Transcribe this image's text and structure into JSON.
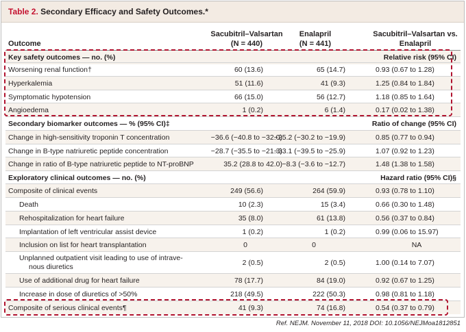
{
  "table": {
    "label": "Table 2.",
    "title": "Secondary Efficacy and Safety Outcomes.*",
    "headers": {
      "outcome": "Outcome",
      "sv_line1": "Sacubitril–Valsartan",
      "sv_line2": "(N = 440)",
      "en_line1": "Enalapril",
      "en_line2": "(N = 441)",
      "rr_line1": "Sacubitril–Valsartan vs.",
      "rr_line2": "Enalapril"
    },
    "sections": {
      "safety": {
        "label": "Key safety outcomes — no. (%)",
        "measure": "Relative risk (95% CI)"
      },
      "biomarker": {
        "label": "Secondary biomarker outcomes — % (95% CI)‡",
        "measure": "Ratio of change (95% CI)"
      },
      "clinical": {
        "label": "Exploratory clinical outcomes — no. (%)",
        "measure": "Hazard ratio (95% CI)§"
      }
    },
    "rows": [
      {
        "name": "Worsening renal function†",
        "sv": "60 (13.6)",
        "en": "65 (14.7)",
        "rr": "0.93 (0.67 to 1.28)"
      },
      {
        "name": "Hyperkalemia",
        "sv": "51 (11.6)",
        "en": "41 (9.3)",
        "rr": "1.25 (0.84 to 1.84)"
      },
      {
        "name": "Symptomatic hypotension",
        "sv": "66 (15.0)",
        "en": "56 (12.7)",
        "rr": "1.18 (0.85 to 1.64)"
      },
      {
        "name": "Angioedema",
        "sv": "1 (0.2)",
        "en": "6 (1.4)",
        "rr": "0.17 (0.02 to 1.38)"
      },
      {
        "name": "Change in high-sensitivity troponin T concentration",
        "sv": "−36.6 (−40.8 to −32.0)",
        "en": "−25.2 (−30.2 to −19.9)",
        "rr": "0.85 (0.77 to 0.94)"
      },
      {
        "name": "Change in B-type natriuretic peptide concentration",
        "sv": "−28.7 (−35.5 to −21.3)",
        "en": "−33.1 (−39.5 to −25.9)",
        "rr": "1.07 (0.92 to 1.23)"
      },
      {
        "name": "Change in ratio of B-type natriuretic peptide to NT-proBNP",
        "sv": "35.2 (28.8 to 42.0)",
        "en": "−8.3 (−3.6 to −12.7)",
        "rr": "1.48 (1.38 to 1.58)"
      },
      {
        "name": "Composite of clinical events",
        "sv": "249 (56.6)",
        "en": "264 (59.9)",
        "rr": "0.93 (0.78 to 1.10)"
      },
      {
        "name": "Death",
        "sv": "10 (2.3)",
        "en": "15 (3.4)",
        "rr": "0.66 (0.30 to 1.48)"
      },
      {
        "name": "Rehospitalization for heart failure",
        "sv": "35 (8.0)",
        "en": "61 (13.8)",
        "rr": "0.56 (0.37 to 0.84)"
      },
      {
        "name": "Implantation of left ventricular assist device",
        "sv": "1 (0.2)",
        "en": "1 (0.2)",
        "rr": "0.99 (0.06 to 15.97)"
      },
      {
        "name": "Inclusion on list for heart transplantation",
        "sv": "0",
        "en": "0",
        "rr": "NA"
      },
      {
        "name_line1": "Unplanned outpatient visit leading to use of intrave-",
        "name_line2": "nous diuretics",
        "sv": "2 (0.5)",
        "en": "2 (0.5)",
        "rr": "1.00 (0.14 to 7.07)"
      },
      {
        "name": "Use of additional drug for heart failure",
        "sv": "78 (17.7)",
        "en": "84 (19.0)",
        "rr": "0.92 (0.67 to 1.25)"
      },
      {
        "name": "Increase in dose of diuretics of >50%",
        "sv": "218 (49.5)",
        "en": "222 (50.3)",
        "rr": "0.98 (0.81 to 1.18)"
      },
      {
        "name": "Composite of serious clinical events¶",
        "sv": "41 (9.3)",
        "en": "74 (16.8)",
        "rr": "0.54 (0.37 to 0.79)"
      }
    ]
  },
  "citation": "Ref. NEJM. November 11, 2018 DOI: 10.1056/NEJMoa1812851",
  "colors": {
    "title_red": "#c41230",
    "highlight_dash": "#b0122e",
    "header_bg": "#f3ebe3",
    "row_shade": "#f7f2ec"
  }
}
